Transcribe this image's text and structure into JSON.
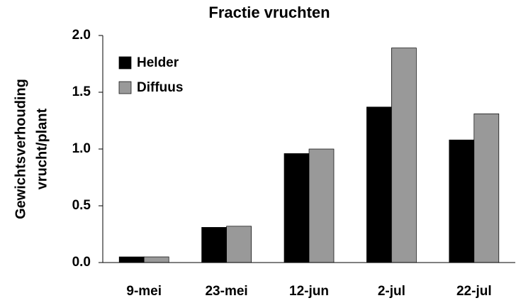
{
  "chart_data": {
    "type": "bar",
    "title": "Fractie vruchten",
    "ylabel": [
      "Gewichtsverhouding",
      "vrucht/plant"
    ],
    "categories": [
      "9-mei",
      "23-mei",
      "12-jun",
      "2-jul",
      "22-jul"
    ],
    "series": [
      {
        "name": "Helder",
        "color": "#000000",
        "values": [
          0.05,
          0.31,
          0.96,
          1.37,
          1.08
        ]
      },
      {
        "name": "Diffuus",
        "color": "#999999",
        "values": [
          0.05,
          0.32,
          1.0,
          1.89,
          1.31
        ]
      }
    ],
    "ylim": [
      0,
      2.0
    ],
    "yticks": [
      {
        "value": 0,
        "label": "0.0"
      },
      0.5,
      {
        "value": 1.0,
        "label": "1.0"
      },
      1.5,
      {
        "value": 2.0,
        "label": "2.0"
      }
    ],
    "legend": "upper left",
    "grid": false
  }
}
